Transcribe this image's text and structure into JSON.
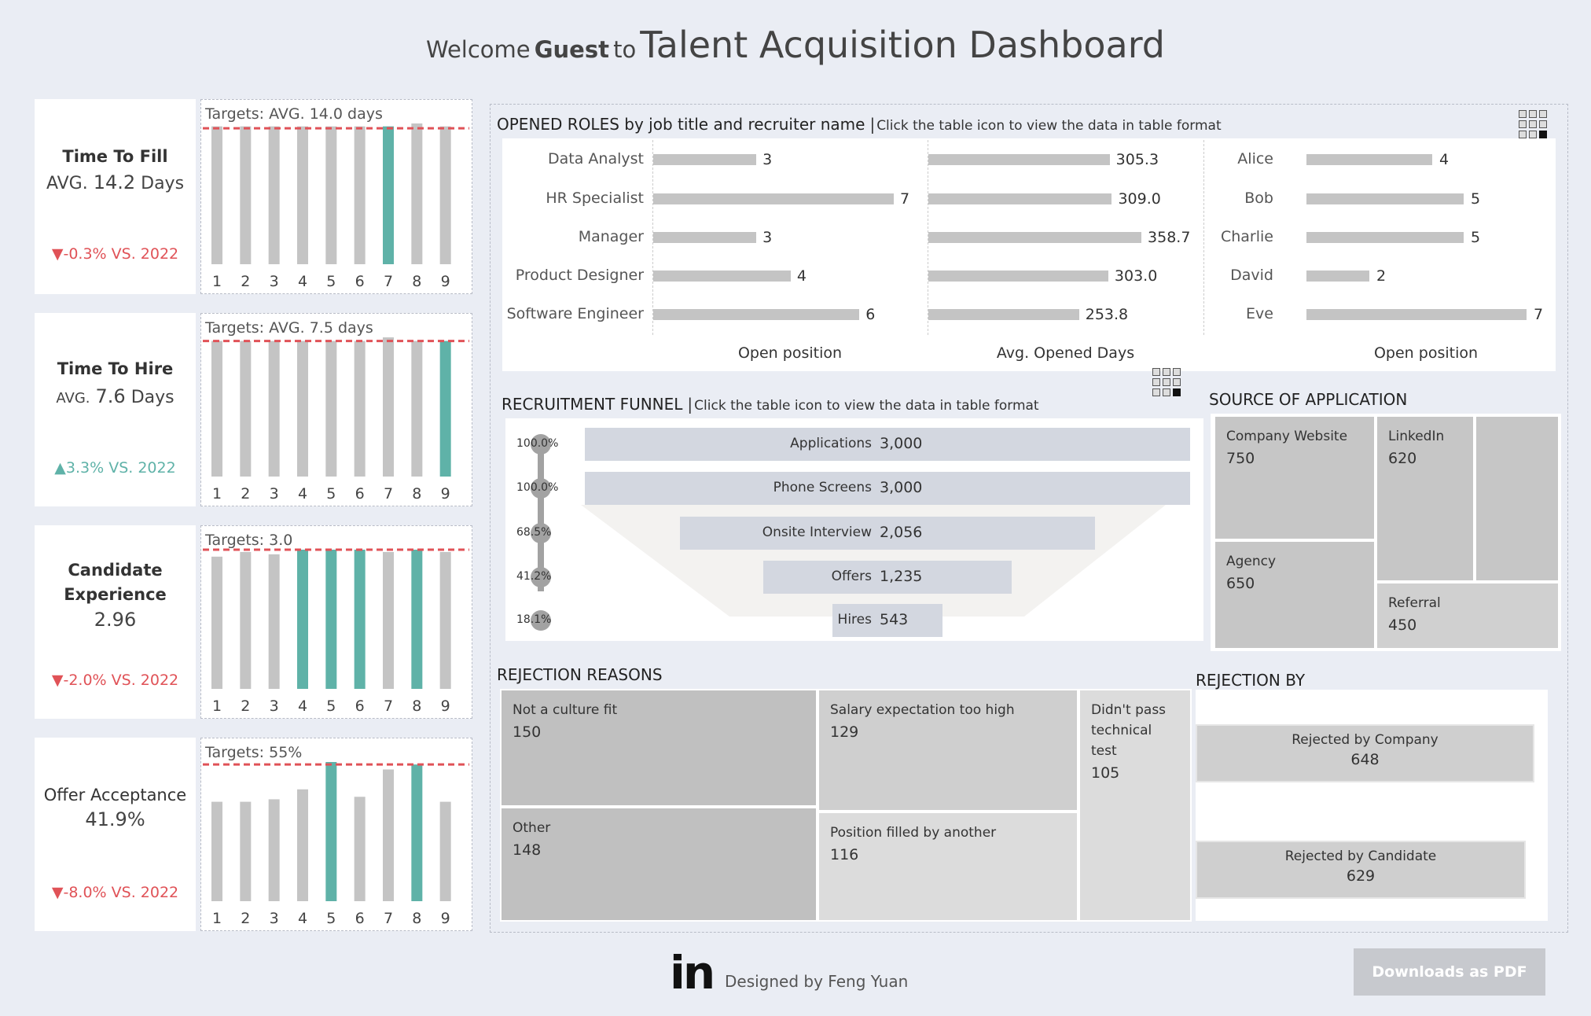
{
  "header": {
    "welcome": "Welcome",
    "guest": "Guest",
    "to": "to",
    "dashboard": "Talent Acquisition Dashboard"
  },
  "kpis": [
    {
      "name1": "Time To Fill",
      "name2": "",
      "prefix": "AVG.",
      "value": "14.2",
      "suffix": "Days",
      "delta": "▼-0.3% VS. 2022",
      "target_label": "Targets: AVG. 14.0 days",
      "target": 14.0,
      "highlights": [
        7
      ],
      "values": [
        14.2,
        14.2,
        14.2,
        14.2,
        14.2,
        14.2,
        14.2,
        14.5,
        14.2
      ]
    },
    {
      "name1": "Time To Hire",
      "name2": "",
      "prefix": "AVG.",
      "value": "7.6",
      "suffix": "Days",
      "delta": "▲3.3% VS. 2022",
      "target_label": "Targets: AVG. 7.5 days",
      "target": 7.5,
      "highlights": [
        9
      ],
      "values": [
        7.5,
        7.5,
        7.5,
        7.5,
        7.5,
        7.5,
        7.7,
        7.5,
        7.5
      ]
    },
    {
      "name1": "Candidate",
      "name2": "Experience",
      "prefix": "",
      "value": "2.96",
      "suffix": "",
      "delta": "▼-2.0% VS. 2022",
      "target_label": "Targets: 3.0",
      "target": 3.0,
      "highlights": [
        4,
        5,
        6,
        8
      ],
      "values": [
        2.85,
        2.95,
        2.9,
        3.0,
        3.0,
        3.0,
        2.95,
        3.0,
        2.95
      ]
    },
    {
      "name1": "Offer Acceptance",
      "name2": "",
      "prefix": "",
      "value": "41.9%",
      "suffix": "",
      "delta": "▼-8.0% VS. 2022",
      "target_label": "Targets: 55%",
      "target": 55,
      "highlights": [
        5,
        8
      ],
      "values": [
        40,
        40,
        41,
        45,
        56,
        42,
        53,
        55,
        40
      ]
    }
  ],
  "kpi_axis": [
    "1",
    "2",
    "3",
    "4",
    "5",
    "6",
    "7",
    "8",
    "9"
  ],
  "opened_roles": {
    "title": "OPENED ROLES by job title and recruiter name",
    "subtitle": "Click the table icon to view the data in table format",
    "titles": [
      "Data Analyst",
      "HR Specialist",
      "Manager",
      "Product Designer",
      "Software Engineer"
    ],
    "open_positions": [
      3,
      7,
      3,
      4,
      6
    ],
    "avg_days": [
      305.3,
      309.0,
      358.7,
      303.0,
      253.8
    ],
    "avg_days_labels": [
      "305.3",
      "309.0",
      "358.7",
      "303.0",
      "253.8"
    ],
    "recruiters": [
      "Alice",
      "Bob",
      "Charlie",
      "David",
      "Eve"
    ],
    "recruiter_positions": [
      4,
      5,
      5,
      2,
      7
    ],
    "axis1": "Open position",
    "axis2": "Avg. Opened Days",
    "axis3": "Open position"
  },
  "funnel": {
    "title": "RECRUITMENT FUNNEL",
    "subtitle": "Click the table icon to view the data in table format",
    "stages": [
      {
        "name": "Applications",
        "value": 3000,
        "label": "3,000",
        "pct": "100.0%"
      },
      {
        "name": "Phone Screens",
        "value": 3000,
        "label": "3,000",
        "pct": "100.0%"
      },
      {
        "name": "Onsite Interview",
        "value": 2056,
        "label": "2,056",
        "pct": "68.5%"
      },
      {
        "name": "Offers",
        "value": 1235,
        "label": "1,235",
        "pct": "41.2%"
      },
      {
        "name": "Hires",
        "value": 543,
        "label": "543",
        "pct": "18.1%"
      }
    ]
  },
  "source": {
    "title": "SOURCE OF APPLICATION",
    "items": [
      {
        "name": "Company Website",
        "value": "750"
      },
      {
        "name": "LinkedIn",
        "value": "620"
      },
      {
        "name": "Agency",
        "value": "650"
      },
      {
        "name": "Referral",
        "value": "450"
      }
    ]
  },
  "rejection_reasons": {
    "title": "REJECTION REASONS",
    "items": [
      {
        "name": "Not a culture fit",
        "value": "150"
      },
      {
        "name": "Salary expectation too high",
        "value": "129"
      },
      {
        "name": "Didn't pass technical test",
        "value": "105"
      },
      {
        "name": "Other",
        "value": "148"
      },
      {
        "name": "Position filled by another",
        "value": "116"
      }
    ]
  },
  "rejection_by": {
    "title": "REJECTION BY",
    "items": [
      {
        "name": "Rejected by Company",
        "value": "648"
      },
      {
        "name": "Rejected by Candidate",
        "value": "629"
      }
    ]
  },
  "footer": {
    "logo": "in",
    "designed_by": "Designed by Feng Yuan",
    "pdf_button": "Downloads as PDF"
  },
  "colors": {
    "highlight": "#5fb2a8",
    "bar": "#c4c4c4",
    "target_line": "#e05257",
    "negative": "#e05257",
    "positive": "#5fb2a8"
  }
}
